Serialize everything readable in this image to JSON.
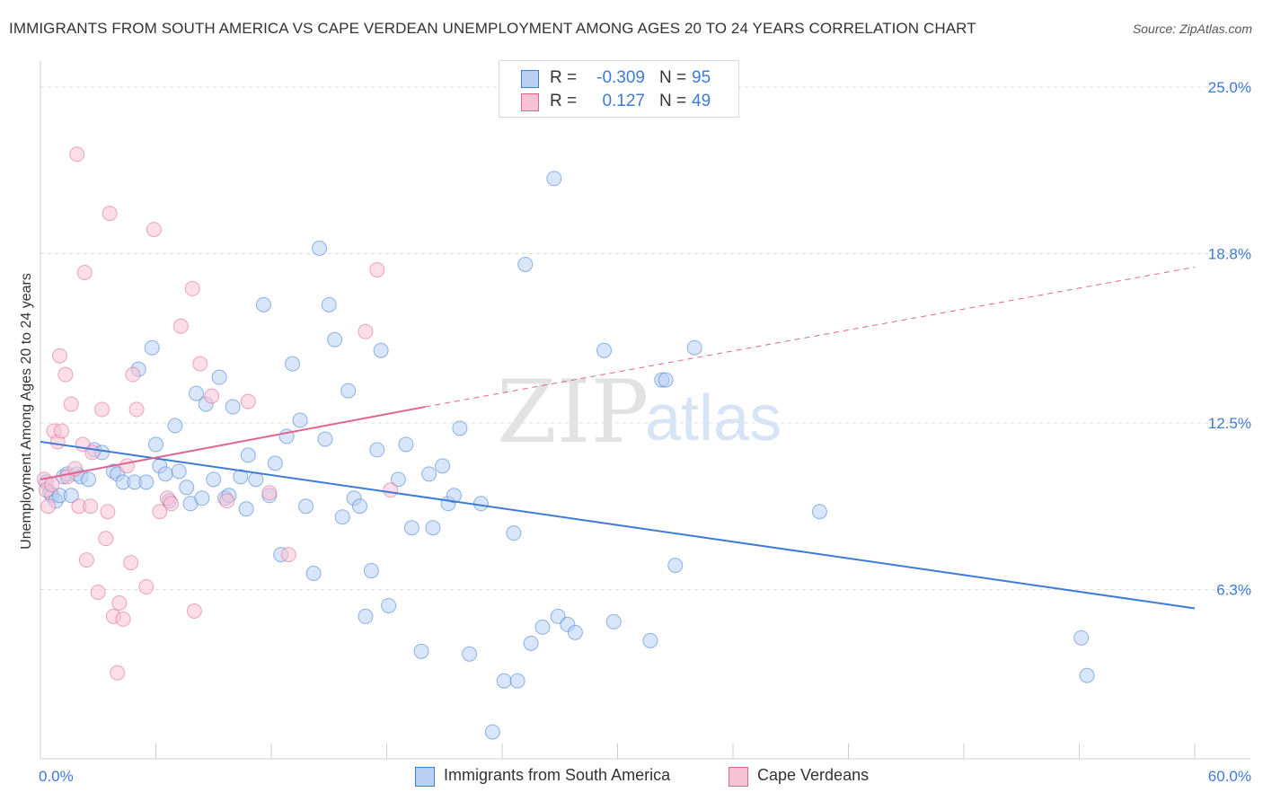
{
  "title": "IMMIGRANTS FROM SOUTH AMERICA VS CAPE VERDEAN UNEMPLOYMENT AMONG AGES 20 TO 24 YEARS CORRELATION CHART",
  "source": "Source: ZipAtlas.com",
  "watermark": {
    "zip": "ZIP",
    "atlas": "atlas"
  },
  "colors": {
    "blue": "#3d7bd6",
    "blue_fill": "#b9d0f2",
    "pink": "#e0648f",
    "pink_fill": "#f7c2d3",
    "grid": "#dddddd"
  },
  "stats": [
    {
      "r_label": "R =",
      "r_value": "-0.309",
      "n_label": "N =",
      "n_value": "95"
    },
    {
      "r_label": "R =",
      "r_value": "0.127",
      "n_label": "N =",
      "n_value": "49"
    }
  ],
  "legend": [
    {
      "label": "Immigrants from South America"
    },
    {
      "label": "Cape Verdeans"
    }
  ],
  "chart_data": {
    "type": "scatter",
    "ylabel": "Unemployment Among Ages 20 to 24 years",
    "xlim": [
      0,
      60
    ],
    "ylim": [
      0,
      25.0
    ],
    "x_tick_labels": [
      {
        "value": 0,
        "label": "0.0%"
      },
      {
        "value": 60,
        "label": "60.0%"
      }
    ],
    "y_ticks": [
      {
        "value": 6.3,
        "label": "6.3%"
      },
      {
        "value": 12.5,
        "label": "12.5%"
      },
      {
        "value": 18.8,
        "label": "18.8%"
      },
      {
        "value": 25.0,
        "label": "25.0%"
      }
    ],
    "grid": true,
    "legend_position": "bottom-center",
    "series": [
      {
        "name": "Immigrants from South America",
        "trend": {
          "x": [
            0,
            60
          ],
          "y": [
            11.8,
            5.6
          ],
          "dashed_extension_to_x": null
        },
        "points": [
          [
            0.3,
            10.3
          ],
          [
            0.5,
            9.9
          ],
          [
            0.6,
            9.8
          ],
          [
            0.8,
            9.6
          ],
          [
            1.0,
            9.8
          ],
          [
            1.2,
            10.5
          ],
          [
            1.4,
            10.6
          ],
          [
            1.6,
            9.8
          ],
          [
            1.9,
            10.6
          ],
          [
            2.1,
            10.5
          ],
          [
            2.5,
            10.4
          ],
          [
            2.8,
            11.5
          ],
          [
            3.2,
            11.4
          ],
          [
            3.8,
            10.7
          ],
          [
            4.0,
            10.6
          ],
          [
            4.3,
            10.3
          ],
          [
            4.9,
            10.3
          ],
          [
            5.1,
            14.5
          ],
          [
            5.5,
            10.3
          ],
          [
            5.8,
            15.3
          ],
          [
            6.0,
            11.7
          ],
          [
            6.2,
            10.9
          ],
          [
            6.5,
            10.6
          ],
          [
            6.7,
            9.6
          ],
          [
            7.0,
            12.4
          ],
          [
            7.2,
            10.7
          ],
          [
            7.6,
            10.1
          ],
          [
            7.8,
            9.5
          ],
          [
            8.1,
            13.6
          ],
          [
            8.4,
            9.7
          ],
          [
            8.6,
            13.2
          ],
          [
            9.0,
            10.4
          ],
          [
            9.3,
            14.2
          ],
          [
            9.6,
            9.7
          ],
          [
            9.8,
            9.8
          ],
          [
            10.0,
            13.1
          ],
          [
            10.4,
            10.5
          ],
          [
            10.7,
            9.3
          ],
          [
            10.8,
            11.3
          ],
          [
            11.2,
            10.4
          ],
          [
            11.6,
            16.9
          ],
          [
            11.9,
            9.8
          ],
          [
            12.2,
            11.0
          ],
          [
            12.5,
            7.6
          ],
          [
            12.8,
            12.0
          ],
          [
            13.1,
            14.7
          ],
          [
            13.5,
            12.6
          ],
          [
            13.8,
            9.4
          ],
          [
            14.2,
            6.9
          ],
          [
            14.5,
            19.0
          ],
          [
            14.8,
            11.9
          ],
          [
            15.0,
            16.9
          ],
          [
            15.3,
            15.6
          ],
          [
            15.7,
            9.0
          ],
          [
            16.0,
            13.7
          ],
          [
            16.3,
            9.7
          ],
          [
            16.6,
            9.4
          ],
          [
            16.9,
            5.3
          ],
          [
            17.2,
            7.0
          ],
          [
            17.5,
            11.5
          ],
          [
            17.7,
            15.2
          ],
          [
            18.1,
            5.7
          ],
          [
            18.6,
            10.4
          ],
          [
            19.0,
            11.7
          ],
          [
            19.3,
            8.6
          ],
          [
            19.8,
            4.0
          ],
          [
            20.2,
            10.6
          ],
          [
            20.4,
            8.6
          ],
          [
            20.9,
            10.9
          ],
          [
            21.2,
            9.5
          ],
          [
            21.5,
            9.8
          ],
          [
            21.8,
            12.3
          ],
          [
            22.3,
            3.9
          ],
          [
            22.9,
            9.5
          ],
          [
            23.5,
            1.0
          ],
          [
            24.1,
            2.9
          ],
          [
            24.6,
            8.4
          ],
          [
            24.8,
            2.9
          ],
          [
            25.2,
            18.4
          ],
          [
            25.5,
            4.3
          ],
          [
            26.1,
            4.9
          ],
          [
            26.7,
            21.6
          ],
          [
            26.9,
            5.3
          ],
          [
            27.4,
            5.0
          ],
          [
            27.8,
            4.7
          ],
          [
            29.3,
            15.2
          ],
          [
            29.8,
            5.1
          ],
          [
            31.7,
            4.4
          ],
          [
            32.3,
            14.1
          ],
          [
            32.5,
            14.1
          ],
          [
            33.0,
            7.2
          ],
          [
            34.0,
            15.3
          ],
          [
            40.5,
            9.2
          ],
          [
            54.1,
            4.5
          ],
          [
            54.4,
            3.1
          ]
        ]
      },
      {
        "name": "Cape Verdeans",
        "trend": {
          "x": [
            0,
            20
          ],
          "y": [
            10.4,
            13.1
          ],
          "dashed_extension_to_x": 60,
          "dashed_end_y": 18.3
        },
        "points": [
          [
            0.2,
            10.4
          ],
          [
            0.3,
            10.0
          ],
          [
            0.4,
            9.4
          ],
          [
            0.6,
            10.2
          ],
          [
            0.7,
            12.2
          ],
          [
            0.9,
            11.8
          ],
          [
            1.0,
            15.0
          ],
          [
            1.1,
            12.2
          ],
          [
            1.3,
            14.3
          ],
          [
            1.4,
            10.5
          ],
          [
            1.6,
            13.2
          ],
          [
            1.8,
            10.8
          ],
          [
            1.9,
            22.5
          ],
          [
            2.0,
            9.4
          ],
          [
            2.2,
            11.7
          ],
          [
            2.3,
            18.1
          ],
          [
            2.4,
            7.4
          ],
          [
            2.6,
            9.4
          ],
          [
            2.7,
            11.4
          ],
          [
            3.0,
            6.2
          ],
          [
            3.2,
            13.0
          ],
          [
            3.4,
            8.2
          ],
          [
            3.5,
            9.2
          ],
          [
            3.6,
            20.3
          ],
          [
            3.8,
            5.3
          ],
          [
            4.0,
            3.2
          ],
          [
            4.1,
            5.8
          ],
          [
            4.3,
            5.2
          ],
          [
            4.5,
            10.9
          ],
          [
            4.7,
            7.3
          ],
          [
            4.8,
            14.3
          ],
          [
            5.0,
            13.0
          ],
          [
            5.5,
            6.4
          ],
          [
            5.9,
            19.7
          ],
          [
            6.2,
            9.2
          ],
          [
            6.6,
            9.7
          ],
          [
            6.8,
            9.5
          ],
          [
            7.3,
            16.1
          ],
          [
            7.9,
            17.5
          ],
          [
            8.0,
            5.5
          ],
          [
            8.3,
            14.7
          ],
          [
            8.9,
            13.5
          ],
          [
            9.7,
            9.6
          ],
          [
            10.8,
            13.3
          ],
          [
            11.9,
            9.9
          ],
          [
            12.9,
            7.6
          ],
          [
            16.9,
            15.9
          ],
          [
            17.5,
            18.2
          ],
          [
            18.2,
            10.0
          ]
        ]
      }
    ]
  }
}
